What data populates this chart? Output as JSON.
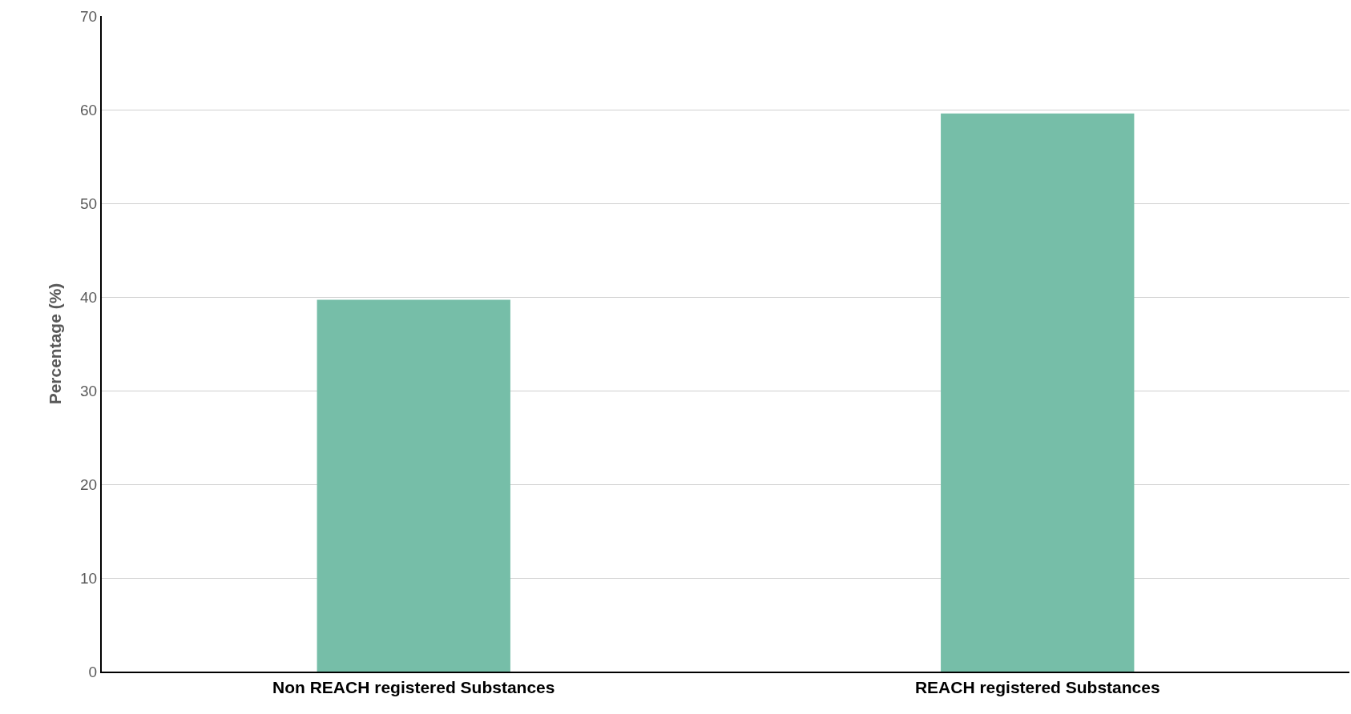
{
  "chart_data": {
    "type": "bar",
    "ylabel": "Percentage (%)",
    "categories": [
      "Non REACH registered Substances",
      "REACH registered Substances"
    ],
    "values": [
      39.7,
      59.6
    ],
    "color": "#76bea8",
    "ylim": [
      0,
      70
    ],
    "yticks": [
      0,
      10,
      20,
      30,
      40,
      50,
      60,
      70
    ],
    "grid": "y"
  }
}
